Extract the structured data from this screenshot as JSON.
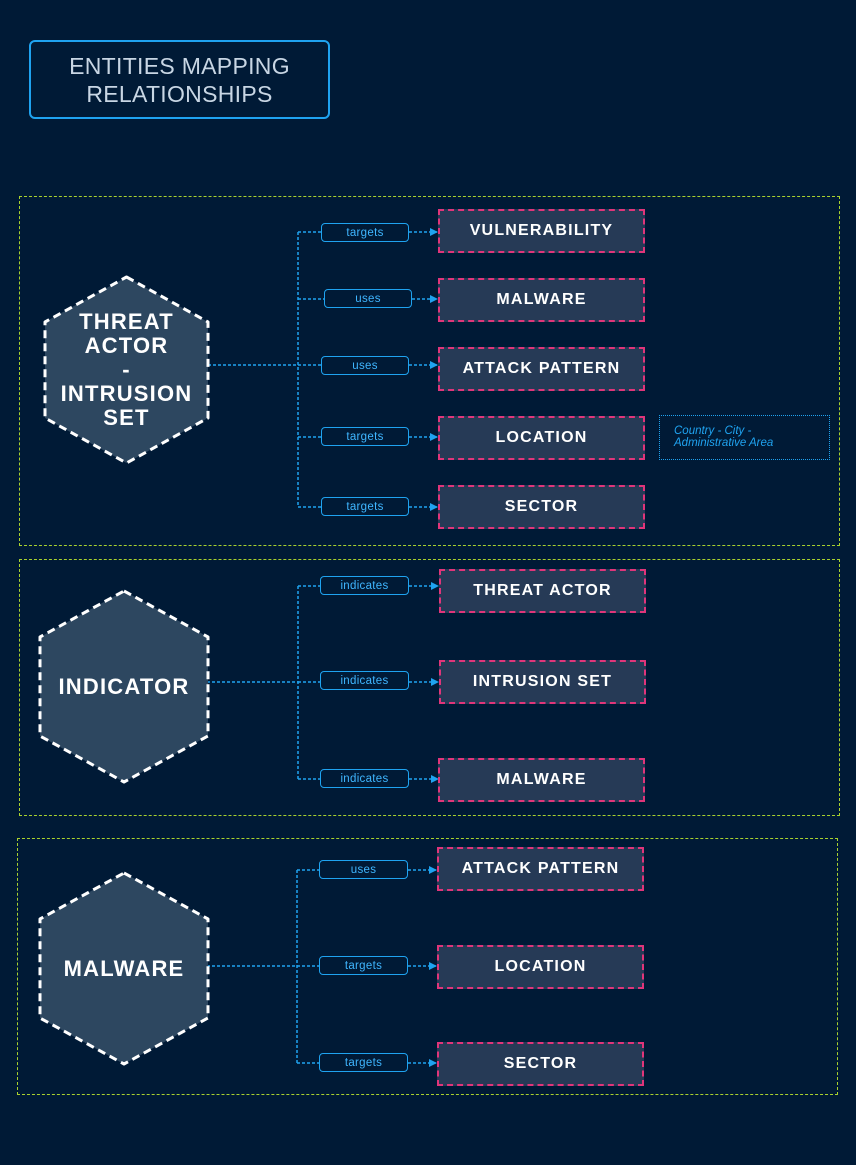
{
  "title": "ENTITIES MAPPING\nRELATIONSHIPS",
  "colors": {
    "background": "#001a36",
    "section_border": "#a9d12e",
    "connector": "#1fa3f0",
    "entity_fill": "#263a56",
    "entity_border": "#e0357a",
    "hex_fill": "#2d4760",
    "hex_border": "#ffffff"
  },
  "sections": [
    {
      "source": "THREAT\nACTOR\n-\nINTRUSION\nSET",
      "targets": [
        {
          "relation": "targets",
          "entity": "VULNERABILITY"
        },
        {
          "relation": "uses",
          "entity": "MALWARE"
        },
        {
          "relation": "uses",
          "entity": "ATTACK PATTERN"
        },
        {
          "relation": "targets",
          "entity": "LOCATION",
          "note": "Country - City -\nAdministrative Area"
        },
        {
          "relation": "targets",
          "entity": "SECTOR"
        }
      ]
    },
    {
      "source": "INDICATOR",
      "targets": [
        {
          "relation": "indicates",
          "entity": "THREAT ACTOR"
        },
        {
          "relation": "indicates",
          "entity": "INTRUSION SET"
        },
        {
          "relation": "indicates",
          "entity": "MALWARE"
        }
      ]
    },
    {
      "source": "MALWARE",
      "targets": [
        {
          "relation": "uses",
          "entity": "ATTACK PATTERN"
        },
        {
          "relation": "targets",
          "entity": "LOCATION"
        },
        {
          "relation": "targets",
          "entity": "SECTOR"
        }
      ]
    }
  ]
}
